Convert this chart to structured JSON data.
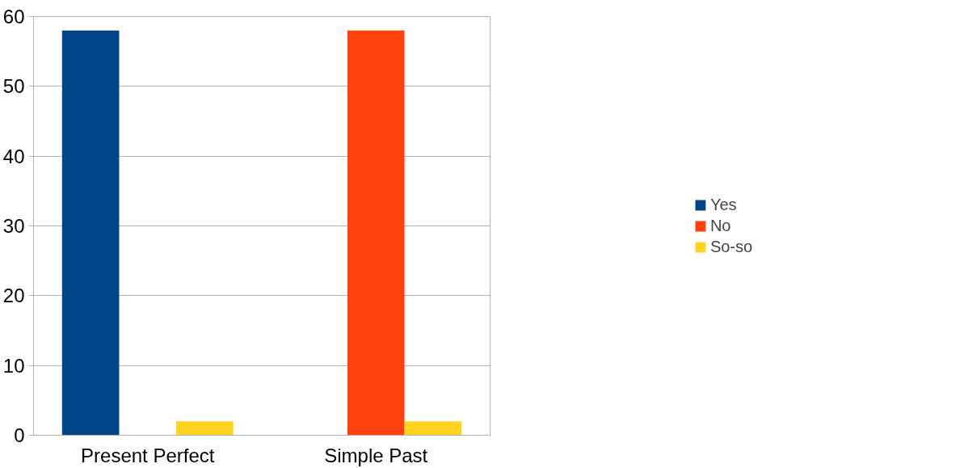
{
  "chart_data": {
    "type": "bar",
    "categories": [
      "Present Perfect",
      "Simple Past"
    ],
    "series": [
      {
        "name": "Yes",
        "color": "#004586",
        "values": [
          58,
          0
        ]
      },
      {
        "name": "No",
        "color": "#ff420e",
        "values": [
          0,
          58
        ]
      },
      {
        "name": "So-so",
        "color": "#ffd320",
        "values": [
          2,
          2
        ]
      }
    ],
    "ylim": [
      0,
      60
    ],
    "yticks": [
      0,
      10,
      20,
      30,
      40,
      50,
      60
    ],
    "grid": "y",
    "legend": "right"
  }
}
